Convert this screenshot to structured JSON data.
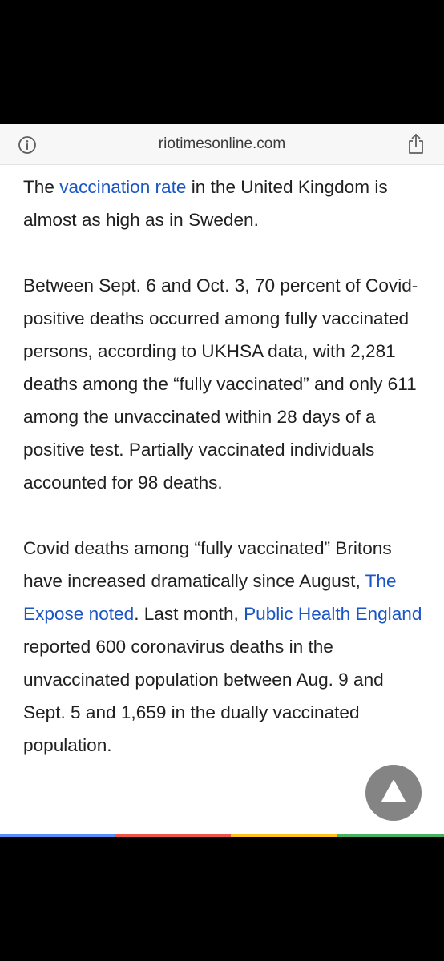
{
  "browser": {
    "domain": "riotimesonline.com",
    "info_icon": "info-circle-icon",
    "share_icon": "share-icon"
  },
  "article": {
    "p1": {
      "before": "The ",
      "link": "vaccination rate",
      "after": " in the United Kingdom is almost as high as in Sweden."
    },
    "p2": "Between Sept. 6 and Oct. 3, 70 percent of Covid-positive deaths occurred among fully vaccinated persons, according to UKHSA data, with 2,281 deaths among the “fully vaccinated” and only 611 among the unvaccinated within 28 days of a positive test. Partially vaccinated individuals accounted for 98 deaths.",
    "p3": {
      "part1": "Covid deaths among “fully vaccinated” Britons have increased dramatically since August, ",
      "link1": "The Expose noted",
      "part2": ". Last month, ",
      "link2": "Public Health England",
      "part3": " reported 600 coronavirus deaths in the unvaccinated population between Aug. 9 and Sept. 5 and 1,659 in the dually vaccinated population."
    }
  },
  "scroll_button_icon": "arrow-up-triangle-icon",
  "colors": {
    "link": "#1a55c4",
    "text": "#202020",
    "urlbar_bg": "#f7f7f7"
  }
}
